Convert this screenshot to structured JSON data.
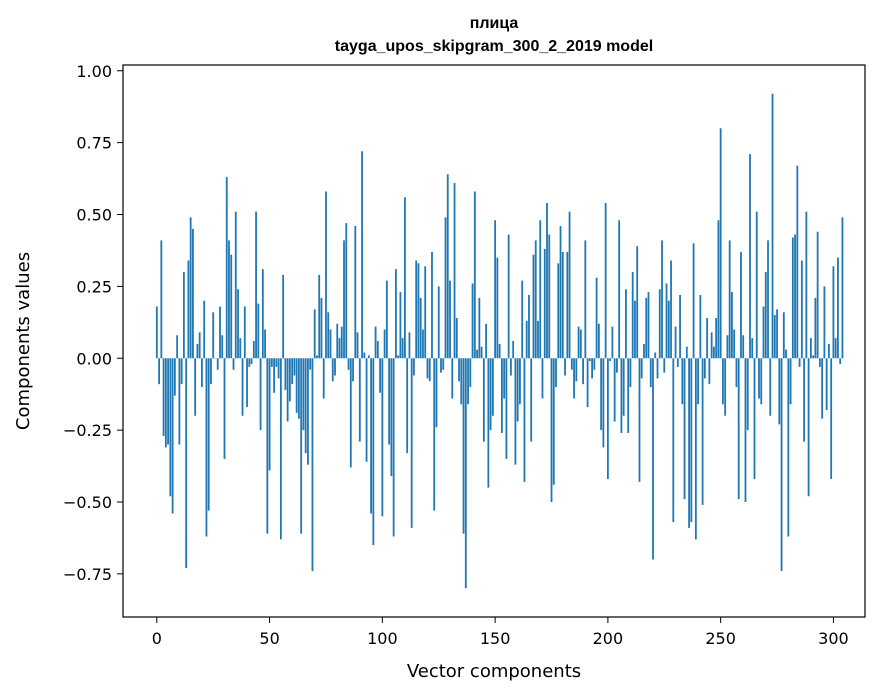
{
  "chart_data": {
    "type": "bar",
    "title_line1": "плица",
    "title_line2": "tayga_upos_skipgram_300_2_2019 model",
    "xlabel": "Vector components",
    "ylabel": "Components values",
    "xlim": [
      -15,
      314
    ],
    "ylim": [
      -0.9,
      1.02
    ],
    "xticks": [
      0,
      50,
      100,
      150,
      200,
      250,
      300
    ],
    "xtick_labels": [
      "0",
      "50",
      "100",
      "150",
      "200",
      "250",
      "300"
    ],
    "yticks": [
      1.0,
      0.75,
      0.5,
      0.25,
      0.0,
      -0.25,
      -0.5,
      -0.75
    ],
    "ytick_labels": [
      "1.00",
      "0.75",
      "0.50",
      "0.25",
      "0.00",
      "−0.25",
      "−0.50",
      "−0.75"
    ],
    "bar_color": "#1f77b4",
    "grid": false,
    "values": [
      0.18,
      -0.09,
      0.41,
      -0.27,
      -0.31,
      -0.3,
      -0.48,
      -0.54,
      -0.13,
      0.08,
      -0.3,
      -0.09,
      0.3,
      -0.73,
      0.34,
      0.49,
      0.45,
      -0.2,
      0.05,
      0.09,
      -0.1,
      0.2,
      -0.62,
      -0.53,
      -0.09,
      0.16,
      0.0,
      -0.04,
      0.18,
      0.08,
      -0.35,
      0.63,
      0.41,
      0.36,
      -0.04,
      0.51,
      0.24,
      0.07,
      -0.2,
      0.18,
      -0.17,
      -0.03,
      -0.02,
      0.06,
      0.51,
      0.19,
      -0.25,
      0.31,
      0.1,
      -0.61,
      -0.39,
      -0.03,
      -0.12,
      -0.03,
      -0.07,
      -0.63,
      0.29,
      -0.11,
      -0.22,
      -0.15,
      -0.09,
      -0.06,
      -0.19,
      -0.21,
      -0.61,
      -0.25,
      -0.33,
      -0.37,
      -0.04,
      -0.74,
      0.17,
      0.01,
      0.29,
      0.21,
      -0.14,
      0.58,
      0.16,
      0.1,
      -0.08,
      -0.06,
      0.12,
      0.07,
      0.11,
      0.41,
      0.47,
      -0.04,
      -0.38,
      -0.08,
      0.46,
      0.09,
      -0.29,
      0.72,
      0.02,
      -0.36,
      0.01,
      -0.54,
      -0.65,
      0.11,
      0.06,
      -0.12,
      -0.55,
      0.1,
      0.27,
      -0.3,
      -0.41,
      -0.62,
      0.31,
      0.01,
      0.23,
      0.07,
      0.56,
      -0.33,
      0.09,
      -0.59,
      -0.06,
      0.34,
      0.33,
      0.21,
      0.1,
      0.32,
      -0.07,
      -0.08,
      0.37,
      -0.53,
      -0.24,
      0.25,
      -0.05,
      -0.04,
      0.49,
      0.64,
      0.27,
      -0.14,
      0.61,
      0.14,
      -0.08,
      -0.16,
      -0.61,
      -0.8,
      -0.16,
      -0.1,
      0.26,
      0.58,
      0.03,
      0.21,
      0.04,
      -0.29,
      0.12,
      -0.45,
      -0.25,
      -0.2,
      0.48,
      0.35,
      0.05,
      -0.26,
      -0.14,
      -0.35,
      0.43,
      -0.06,
      0.06,
      -0.37,
      -0.22,
      -0.16,
      0.27,
      -0.43,
      0.13,
      0.22,
      -0.29,
      0.36,
      0.41,
      0.13,
      0.48,
      -0.14,
      0.38,
      0.54,
      0.43,
      -0.5,
      -0.44,
      -0.1,
      0.33,
      0.46,
      0.37,
      -0.06,
      0.37,
      0.51,
      -0.04,
      -0.14,
      -0.08,
      0.11,
      0.1,
      -0.09,
      0.41,
      -0.17,
      -0.01,
      -0.07,
      -0.04,
      0.28,
      0.12,
      -0.25,
      -0.31,
      0.54,
      -0.42,
      -0.01,
      0.11,
      -0.22,
      -0.05,
      0.48,
      -0.26,
      -0.2,
      0.24,
      -0.26,
      -0.1,
      0.3,
      0.2,
      0.39,
      -0.43,
      -0.07,
      0.05,
      0.21,
      0.23,
      -0.1,
      -0.7,
      0.02,
      -0.07,
      0.24,
      0.41,
      -0.05,
      0.26,
      0.2,
      0.34,
      -0.57,
      0.11,
      -0.03,
      0.22,
      -0.16,
      -0.49,
      0.04,
      -0.59,
      -0.57,
      0.4,
      -0.63,
      -0.16,
      0.22,
      -0.51,
      -0.07,
      0.14,
      -0.09,
      0.09,
      0.04,
      0.14,
      0.48,
      0.8,
      -0.16,
      -0.2,
      0.08,
      0.41,
      0.23,
      0.1,
      -0.1,
      -0.49,
      0.37,
      0.08,
      -0.5,
      -0.25,
      0.71,
      0.07,
      -0.42,
      0.51,
      -0.14,
      -0.16,
      0.18,
      0.3,
      0.41,
      -0.2,
      0.92,
      0.15,
      0.17,
      -0.23,
      -0.74,
      0.16,
      0.03,
      -0.62,
      -0.16,
      0.42,
      0.43,
      0.67,
      -0.03,
      0.34,
      -0.29,
      0.51,
      -0.48,
      0.07,
      0.01,
      0.21,
      0.44,
      -0.03,
      -0.21,
      0.25,
      -0.18,
      0.05,
      -0.42,
      0.32,
      0.07,
      0.35,
      -0.02,
      0.49
    ]
  }
}
